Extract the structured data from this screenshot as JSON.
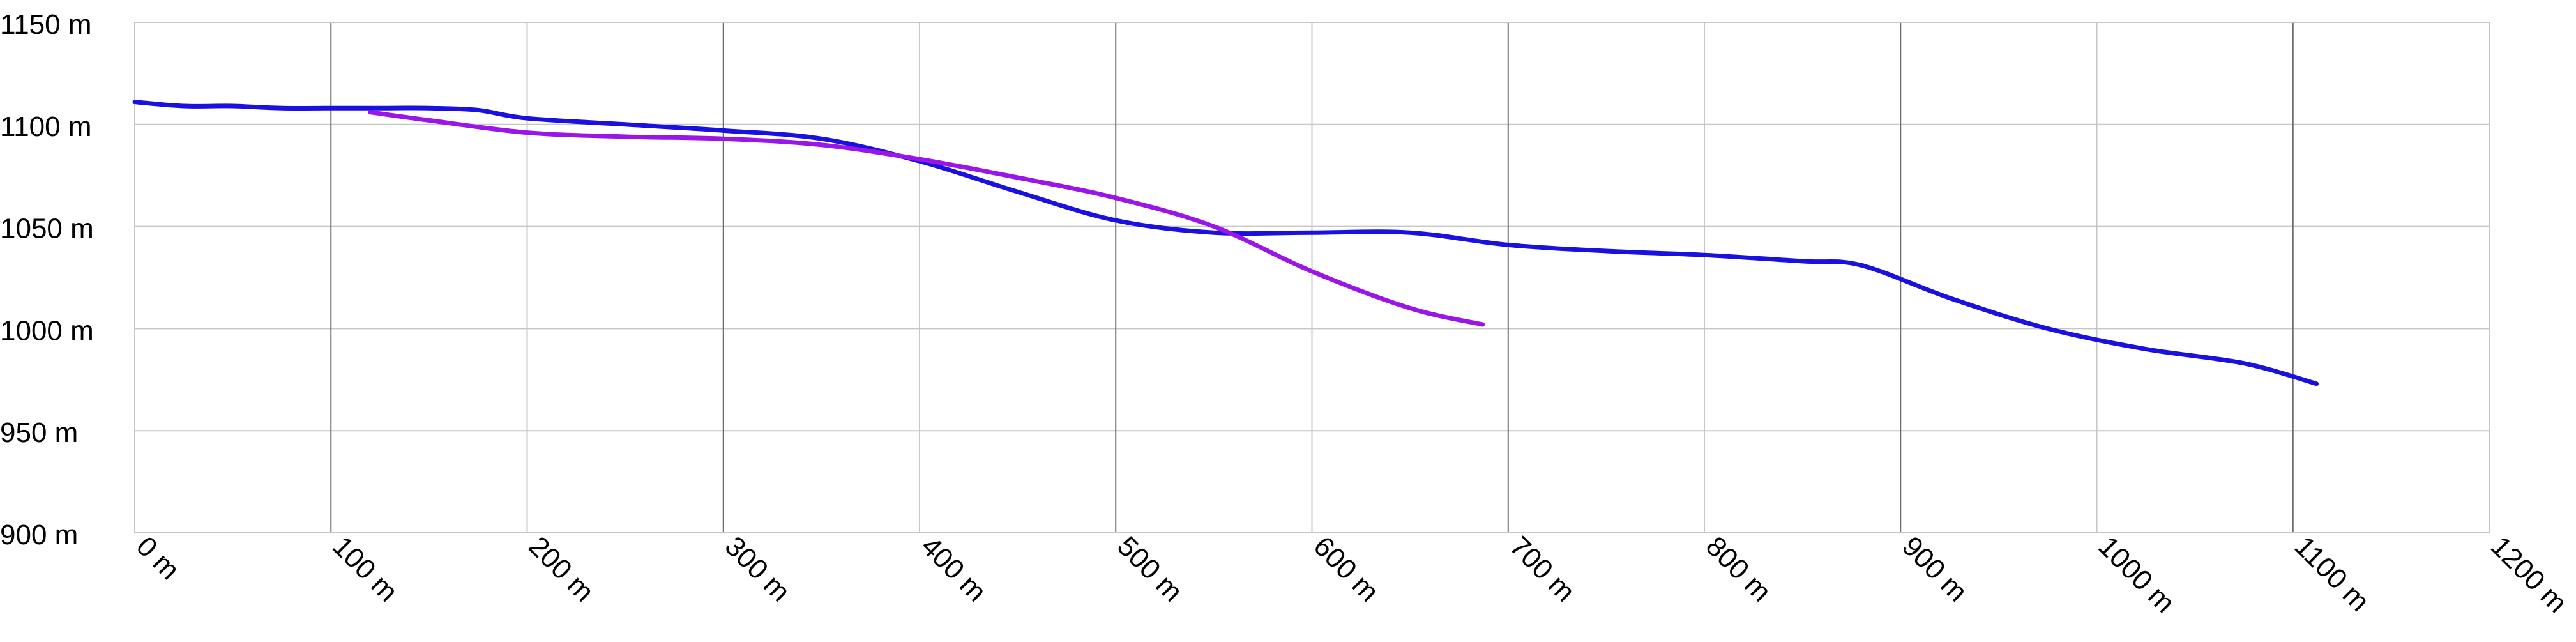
{
  "chart_data": {
    "type": "line",
    "title": "",
    "xlabel": "",
    "ylabel": "",
    "xlim": [
      0,
      1200
    ],
    "ylim": [
      900,
      1150
    ],
    "x_ticks": [
      0,
      100,
      200,
      300,
      400,
      500,
      600,
      700,
      800,
      900,
      1000,
      1100,
      1200
    ],
    "y_ticks": [
      900,
      950,
      1000,
      1050,
      1100,
      1150
    ],
    "x_tick_labels": [
      "0 m",
      "100 m",
      "200 m",
      "300 m",
      "400 m",
      "500 m",
      "600 m",
      "700 m",
      "800 m",
      "900 m",
      "1000 m",
      "1100 m",
      "1200 m"
    ],
    "y_tick_labels": [
      "900 m",
      "950 m",
      "1000 m",
      "1050 m",
      "1100 m",
      "1150 m"
    ],
    "grid": true,
    "legend": "none",
    "series": [
      {
        "color": "#1a10e0",
        "x": [
          0,
          25,
          50,
          75,
          100,
          125,
          150,
          175,
          200,
          250,
          300,
          350,
          400,
          450,
          500,
          550,
          600,
          650,
          700,
          750,
          800,
          850,
          880,
          925,
          975,
          1025,
          1075,
          1112
        ],
        "y": [
          1111,
          1109,
          1109,
          1108,
          1108,
          1108,
          1108,
          1107,
          1103,
          1100,
          1097,
          1093,
          1082,
          1067,
          1053,
          1047,
          1047,
          1047,
          1041,
          1038,
          1036,
          1033,
          1031,
          1015,
          1000,
          990,
          983,
          973
        ]
      },
      {
        "color": "#9a16e8",
        "x": [
          120,
          150,
          200,
          250,
          300,
          350,
          400,
          450,
          500,
          550,
          600,
          650,
          687
        ],
        "y": [
          1106,
          1102,
          1096,
          1094,
          1093,
          1090,
          1083,
          1074,
          1064,
          1050,
          1028,
          1010,
          1002
        ]
      }
    ]
  }
}
